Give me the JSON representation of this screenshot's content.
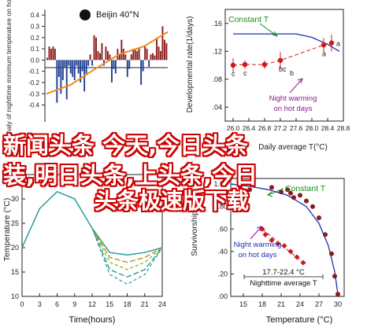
{
  "colors": {
    "bar_warm": "#8b1a1a",
    "bar_cold": "#1f3f8f",
    "trend": "#f08a1e",
    "constant_line": "#1f2fb0",
    "warming_marker": "#d01818",
    "annotation_green": "#1a8a1a",
    "annotation_purple": "#8b1a8b",
    "watermark_fill": "#ffffff",
    "watermark_outline": "#cc0000"
  },
  "watermark": {
    "line1": "新闻头条 今天,今日头条",
    "line2": "装,明日头条,上头条,今日",
    "line3": "头条极速版下载"
  },
  "chart_data": [
    {
      "type": "bar",
      "panel": "top-left",
      "title": "Beijin 40°N",
      "ylabel": "Anomaly of nighttime minimum temperature on hot days",
      "ylim": [
        -0.55,
        0.45
      ],
      "yticks": [
        -0.4,
        -0.3,
        -0.2,
        -0.1,
        0.0,
        0.1,
        0.2,
        0.3,
        0.4
      ],
      "xticks": [],
      "grid": false,
      "values": [
        0.02,
        0.12,
        0.1,
        0.12,
        0.1,
        -0.38,
        -0.15,
        -0.3,
        -0.18,
        -0.07,
        -0.35,
        -0.05,
        -0.12,
        -0.15,
        -0.18,
        -0.05,
        -0.12,
        -0.2,
        -0.1,
        -0.28,
        -0.12,
        -0.05,
        0.05,
        -0.05,
        0.22,
        0.2,
        0.08,
        0.06,
        0.15,
        -0.05,
        0.12,
        0.08,
        0.05,
        -0.2,
        -0.08,
        -0.12,
        0.1,
        0.05,
        0.18,
        0.1,
        0.05,
        -0.15,
        -0.08,
        0.05,
        0.1,
        0.1,
        0.08,
        0.1,
        -0.22,
        -0.1,
        0.12,
        0.1,
        -0.06,
        0.05,
        0.06,
        0.04,
        0.2,
        0.12,
        0.08,
        0.3,
        0.18,
        0.15
      ],
      "trend": [
        -0.3,
        -0.22,
        -0.08,
        0.05,
        0.12,
        0.25
      ]
    },
    {
      "type": "line",
      "panel": "top-right",
      "ylabel": "Developmental rate(1/days)",
      "xlabel": "Daily average T(°C)",
      "xlim": [
        25.8,
        28.8
      ],
      "ylim": [
        0.02,
        0.18
      ],
      "xticks": [
        26.0,
        26.4,
        26.8,
        27.2,
        27.6,
        28.0,
        28.4,
        28.8
      ],
      "xtick_labels": [
        "26.0",
        "26.4",
        "26.8",
        "27.2",
        "27.6",
        "28.0",
        "28.4",
        "28.8"
      ],
      "yticks": [
        0.04,
        0.08,
        0.12,
        0.16
      ],
      "ytick_labels": [
        ".04",
        ".08",
        ".12",
        ".16"
      ],
      "series": [
        {
          "name": "Constant T",
          "x": [
            26.0,
            26.4,
            26.8,
            27.2,
            27.6,
            28.0,
            28.4,
            28.7
          ],
          "y": [
            0.145,
            0.145,
            0.145,
            0.145,
            0.145,
            0.14,
            0.13,
            0.12
          ]
        },
        {
          "name": "Night warming on hot days",
          "x": [
            26.0,
            26.3,
            26.8,
            27.2,
            28.3,
            28.5
          ],
          "y": [
            0.1,
            0.101,
            0.101,
            0.107,
            0.129,
            0.132
          ],
          "err": [
            0.01,
            0.006,
            0.006,
            0.012,
            0.01,
            0.012
          ],
          "point_labels": [
            "c",
            "c",
            "",
            "bc",
            "a",
            "a"
          ]
        }
      ],
      "annotations": [
        "Constant T",
        "Night warming on hot days",
        "b"
      ]
    },
    {
      "type": "line",
      "panel": "bottom-left",
      "ylabel": "Temperature (°C)",
      "xlabel": "Time(hours)",
      "xlim": [
        0,
        24
      ],
      "ylim": [
        10,
        35
      ],
      "xticks": [
        0,
        3,
        6,
        9,
        12,
        15,
        18,
        21,
        24
      ],
      "yticks": [
        10,
        15,
        20,
        25,
        30,
        35
      ],
      "series": [
        {
          "x": [
            0,
            3,
            6,
            9,
            12,
            15,
            18,
            21,
            24
          ],
          "y": [
            20,
            28,
            31.5,
            30,
            24,
            19,
            18.5,
            19,
            20
          ]
        },
        {
          "x": [
            12,
            15,
            18,
            21,
            24
          ],
          "y": [
            24,
            18,
            17,
            18,
            20
          ]
        },
        {
          "x": [
            12,
            15,
            18,
            21,
            24
          ],
          "y": [
            24,
            17,
            15.5,
            17,
            20
          ]
        },
        {
          "x": [
            12,
            15,
            18,
            21,
            24
          ],
          "y": [
            24,
            15.5,
            14,
            15.5,
            20
          ]
        },
        {
          "x": [
            12,
            15,
            18,
            21,
            24
          ],
          "y": [
            24,
            14.5,
            12.5,
            14.5,
            20
          ]
        }
      ],
      "series_colors": [
        "#2a9a9a",
        "#b8860b",
        "#8ab020",
        "#1a9a70",
        "#2aa0c0"
      ]
    },
    {
      "type": "line",
      "panel": "bottom-right",
      "ylabel": "Survivorship",
      "xlabel": "Temperature (°C)",
      "xlim": [
        13,
        31
      ],
      "ylim": [
        0,
        1.05
      ],
      "xticks": [
        15,
        18,
        21,
        24,
        27,
        30
      ],
      "yticks": [
        0,
        0.2,
        0.4,
        0.6,
        0.8,
        1.0
      ],
      "ytick_labels": [
        ".00",
        ".20",
        ".40",
        ".60",
        ".80",
        "1.00"
      ],
      "series": [
        {
          "name": "Constant T",
          "line_x": [
            13,
            16,
            19,
            22,
            25,
            27,
            28.5,
            29.5,
            30
          ],
          "line_y": [
            1.0,
            0.98,
            0.95,
            0.9,
            0.8,
            0.65,
            0.45,
            0.22,
            0.02
          ],
          "x": [
            14.5,
            16,
            19.5,
            21,
            22,
            22.5,
            23,
            24,
            25,
            26,
            27,
            28,
            29,
            29.5,
            30
          ],
          "y": [
            0.98,
            0.95,
            0.97,
            0.93,
            0.95,
            0.92,
            0.88,
            0.9,
            0.85,
            0.8,
            0.7,
            0.55,
            0.38,
            0.18,
            0.02
          ]
        },
        {
          "name": "Night warming on hot days",
          "x": [
            18.0,
            18.5,
            19.5,
            20.5,
            21.5,
            22.5,
            23.5,
            24.5
          ],
          "y": [
            0.6,
            0.55,
            0.5,
            0.47,
            0.45,
            0.4,
            0.35,
            0.3
          ],
          "trend_x": [
            18.0,
            24.5
          ],
          "trend_y": [
            0.6,
            0.3
          ]
        }
      ],
      "annotations": [
        "Constant T",
        "Night warming on hot days",
        "17.7-22.4 °C",
        "Nighttime average T"
      ]
    }
  ]
}
